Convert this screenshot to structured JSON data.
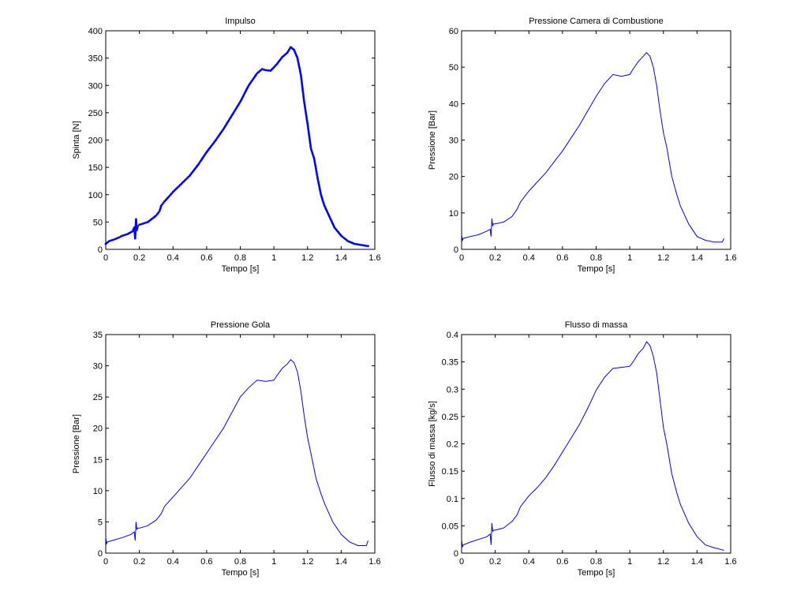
{
  "chart_data": [
    {
      "type": "line",
      "title": "Impulso",
      "xlabel": "Tempo [s]",
      "ylabel": "Spinta [N]",
      "xlim": [
        0,
        1.6
      ],
      "ylim": [
        0,
        400
      ],
      "xticks": [
        0,
        0.2,
        0.4,
        0.6,
        0.8,
        1,
        1.2,
        1.4,
        1.6
      ],
      "yticks": [
        0,
        50,
        100,
        150,
        200,
        250,
        300,
        350,
        400
      ],
      "grid": false,
      "markers": true,
      "color": "#0000ff",
      "series": [
        {
          "x": [
            0,
            0.02,
            0.05,
            0.08,
            0.1,
            0.13,
            0.16,
            0.17,
            0.175,
            0.18,
            0.185,
            0.19,
            0.2,
            0.22,
            0.25,
            0.28,
            0.3,
            0.32,
            0.33,
            0.35,
            0.38,
            0.4,
            0.45,
            0.5,
            0.55,
            0.6,
            0.65,
            0.7,
            0.75,
            0.8,
            0.85,
            0.9,
            0.93,
            0.95,
            0.98,
            1.0,
            1.02,
            1.05,
            1.08,
            1.1,
            1.12,
            1.14,
            1.16,
            1.18,
            1.2,
            1.22,
            1.24,
            1.26,
            1.28,
            1.3,
            1.33,
            1.36,
            1.4,
            1.44,
            1.48,
            1.52,
            1.56
          ],
          "y": [
            10,
            15,
            18,
            22,
            25,
            28,
            33,
            40,
            20,
            55,
            35,
            42,
            45,
            47,
            50,
            57,
            62,
            70,
            80,
            88,
            98,
            105,
            120,
            135,
            155,
            178,
            198,
            220,
            245,
            270,
            300,
            322,
            330,
            328,
            327,
            333,
            340,
            352,
            360,
            370,
            365,
            350,
            320,
            270,
            230,
            185,
            165,
            130,
            100,
            80,
            60,
            40,
            25,
            15,
            10,
            8,
            6
          ]
        }
      ]
    },
    {
      "type": "line",
      "title": "Pressione Camera di Combustione",
      "xlabel": "Tempo [s]",
      "ylabel": "Pressione [Bar]",
      "xlim": [
        0,
        1.6
      ],
      "ylim": [
        0,
        60
      ],
      "xticks": [
        0,
        0.2,
        0.4,
        0.6,
        0.8,
        1,
        1.2,
        1.4,
        1.6
      ],
      "yticks": [
        0,
        10,
        20,
        30,
        40,
        50,
        60
      ],
      "grid": false,
      "markers": false,
      "color": "#0000ff",
      "series": [
        {
          "x": [
            0,
            0.005,
            0.01,
            0.05,
            0.1,
            0.15,
            0.17,
            0.175,
            0.18,
            0.185,
            0.19,
            0.2,
            0.25,
            0.3,
            0.33,
            0.35,
            0.4,
            0.45,
            0.5,
            0.55,
            0.6,
            0.65,
            0.7,
            0.75,
            0.8,
            0.85,
            0.9,
            0.95,
            1.0,
            1.02,
            1.05,
            1.08,
            1.1,
            1.12,
            1.14,
            1.16,
            1.18,
            1.2,
            1.22,
            1.25,
            1.28,
            1.3,
            1.35,
            1.4,
            1.45,
            1.5,
            1.55,
            1.56
          ],
          "y": [
            4,
            2.5,
            3,
            3.5,
            4,
            5,
            5.5,
            3.5,
            8.5,
            6.5,
            7,
            7,
            7.5,
            9,
            11,
            13,
            16,
            18.5,
            21,
            24,
            27,
            30.5,
            34,
            38,
            42,
            45.5,
            48,
            47.5,
            48,
            49.5,
            51.5,
            53,
            54,
            53,
            50,
            45,
            38,
            32,
            28,
            20,
            15,
            12,
            7,
            3.5,
            2.5,
            2,
            2,
            3
          ]
        }
      ]
    },
    {
      "type": "line",
      "title": "Pressione Gola",
      "xlabel": "Tempo [s]",
      "ylabel": "Pressione [Bar]",
      "xlim": [
        0,
        1.6
      ],
      "ylim": [
        0,
        35
      ],
      "xticks": [
        0,
        0.2,
        0.4,
        0.6,
        0.8,
        1,
        1.2,
        1.4,
        1.6
      ],
      "yticks": [
        0,
        5,
        10,
        15,
        20,
        25,
        30,
        35
      ],
      "grid": false,
      "markers": false,
      "color": "#0000ff",
      "series": [
        {
          "x": [
            0,
            0.005,
            0.01,
            0.05,
            0.1,
            0.15,
            0.17,
            0.175,
            0.18,
            0.185,
            0.19,
            0.2,
            0.25,
            0.3,
            0.33,
            0.35,
            0.4,
            0.45,
            0.5,
            0.55,
            0.6,
            0.65,
            0.7,
            0.75,
            0.8,
            0.85,
            0.9,
            0.95,
            1.0,
            1.02,
            1.05,
            1.08,
            1.1,
            1.12,
            1.14,
            1.16,
            1.18,
            1.2,
            1.22,
            1.25,
            1.28,
            1.3,
            1.35,
            1.4,
            1.45,
            1.5,
            1.55,
            1.56
          ],
          "y": [
            2.5,
            1.5,
            1.8,
            2.1,
            2.5,
            3,
            3.4,
            2,
            5,
            3.8,
            4,
            4,
            4.4,
            5.3,
            6.3,
            7.5,
            9,
            10.5,
            12,
            14,
            16,
            18,
            20,
            22.5,
            25,
            26.5,
            27.7,
            27.5,
            27.7,
            28.5,
            29.6,
            30.3,
            31,
            30.5,
            29,
            26,
            22,
            18.5,
            16,
            12,
            9.5,
            8,
            5,
            3,
            1.8,
            1.2,
            1.2,
            2
          ]
        }
      ]
    },
    {
      "type": "line",
      "title": "Flusso di massa",
      "xlabel": "Tempo [s]",
      "ylabel": "Flusso di massa [kg/s]",
      "xlim": [
        0,
        1.6
      ],
      "ylim": [
        0,
        0.4
      ],
      "xticks": [
        0,
        0.2,
        0.4,
        0.6,
        0.8,
        1,
        1.2,
        1.4,
        1.6
      ],
      "yticks": [
        0,
        0.05,
        0.1,
        0.15,
        0.2,
        0.25,
        0.3,
        0.35,
        0.4
      ],
      "grid": false,
      "markers": false,
      "color": "#0000ff",
      "series": [
        {
          "x": [
            0,
            0.005,
            0.01,
            0.05,
            0.1,
            0.15,
            0.17,
            0.175,
            0.18,
            0.185,
            0.19,
            0.2,
            0.25,
            0.3,
            0.33,
            0.35,
            0.4,
            0.45,
            0.5,
            0.55,
            0.6,
            0.65,
            0.7,
            0.75,
            0.8,
            0.85,
            0.9,
            0.95,
            1.0,
            1.02,
            1.05,
            1.08,
            1.1,
            1.12,
            1.14,
            1.16,
            1.18,
            1.2,
            1.22,
            1.25,
            1.28,
            1.3,
            1.35,
            1.4,
            1.45,
            1.5,
            1.55,
            1.56
          ],
          "y": [
            0.025,
            0.012,
            0.015,
            0.02,
            0.025,
            0.03,
            0.035,
            0.015,
            0.055,
            0.04,
            0.042,
            0.042,
            0.046,
            0.058,
            0.07,
            0.085,
            0.105,
            0.12,
            0.138,
            0.16,
            0.185,
            0.21,
            0.235,
            0.265,
            0.298,
            0.322,
            0.338,
            0.34,
            0.342,
            0.35,
            0.365,
            0.375,
            0.387,
            0.38,
            0.36,
            0.33,
            0.28,
            0.23,
            0.2,
            0.145,
            0.11,
            0.09,
            0.055,
            0.03,
            0.015,
            0.01,
            0.006,
            0.005
          ]
        }
      ]
    }
  ]
}
